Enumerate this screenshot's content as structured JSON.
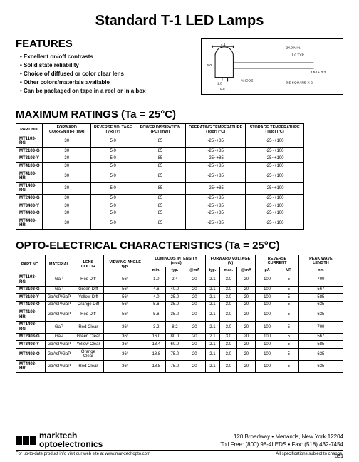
{
  "title": "Standard T-1 LED Lamps",
  "features": {
    "heading": "FEATURES",
    "items": [
      "Excellent on/off contrasts",
      "Solid state reliability",
      "Choice of diffused or color clear lens",
      "Other colors/materials available",
      "Can be packaged on tape in a reel or in a box"
    ]
  },
  "diagram": {
    "labels": [
      "4.1",
      "5.0",
      "1.0",
      "24.0 MIN.",
      "1.0 TYP.",
      "2.54 ± 0.2",
      "0.5 SQUARE X 2",
      "ANODE",
      "0.5"
    ]
  },
  "max": {
    "heading": "MAXIMUM RATINGS (Ta = 25°C)",
    "columns": [
      "PART NO.",
      "FORWARD CURRENT(IF) (mA)",
      "REVERSE VOLTAGE (VR) (V)",
      "POWER DISSIPATION (PD) (mW)",
      "OPERATING TEMPERATURE (Topr) (°C)",
      "STORAGE TEMPERATURE (Tstg) (°C)"
    ],
    "rows": [
      [
        "MT1103-RG",
        "30",
        "5.0",
        "85",
        "-25~+85",
        "-25~+100"
      ],
      [
        "MT2103-G",
        "30",
        "5.0",
        "85",
        "-25~+85",
        "-25~+100"
      ],
      [
        "MT3103-Y",
        "30",
        "5.0",
        "85",
        "-25~+85",
        "-25~+100"
      ],
      [
        "MT4103-O",
        "30",
        "5.0",
        "85",
        "-25~+85",
        "-25~+100"
      ],
      [
        "MT4103-HR",
        "30",
        "5.0",
        "85",
        "-25~+85",
        "-25~+100"
      ],
      [
        "MT1403-RG",
        "30",
        "5.0",
        "85",
        "-25~+85",
        "-25~+100"
      ],
      [
        "MT2403-G",
        "30",
        "5.0",
        "85",
        "-25~+85",
        "-25~+100"
      ],
      [
        "MT3403-Y",
        "30",
        "5.0",
        "85",
        "-25~+85",
        "-25~+100"
      ],
      [
        "MT4403-O",
        "30",
        "5.0",
        "85",
        "-25~+85",
        "-25~+100"
      ],
      [
        "MT4403-HR",
        "30",
        "5.0",
        "85",
        "-25~+85",
        "-25~+100"
      ]
    ]
  },
  "opto": {
    "heading": "OPTO-ELECTRICAL CHARACTERISTICS (Ta = 25°C)",
    "top_columns": [
      "PART NO.",
      "MATERIAL",
      "LENS COLOR",
      "VIEWING ANGLE typ.",
      "LUMINOUS INTENSITY (mcd)",
      "FORWARD VOLTAGE (V)",
      "REVERSE CURRENT",
      "PEAK WAVE LENGTH"
    ],
    "sub_columns": [
      "min.",
      "typ.",
      "@mA",
      "typ.",
      "max.",
      "@mA",
      "µA",
      "VR",
      "nm"
    ],
    "rows": [
      [
        "MT1103-RG",
        "GaP",
        "Red Diff",
        "56°",
        "1.0",
        "2.4",
        "20",
        "2.1",
        "3.0",
        "20",
        "100",
        "5",
        "700"
      ],
      [
        "MT2103-G",
        "GaP",
        "Green Diff",
        "56°",
        "4.6",
        "40.0",
        "20",
        "2.1",
        "3.0",
        "20",
        "100",
        "5",
        "567"
      ],
      [
        "MT3103-Y",
        "GaAsP/GaP",
        "Yellow Diff",
        "56°",
        "4.0",
        "25.0",
        "20",
        "2.1",
        "3.0",
        "20",
        "100",
        "5",
        "585"
      ],
      [
        "MT4103-O",
        "GaAsP/GaP",
        "Orange Diff",
        "56°",
        "5.6",
        "35.0",
        "20",
        "2.1",
        "3.0",
        "20",
        "100",
        "5",
        "635"
      ],
      [
        "MT4103-HR",
        "GaAsP/GaP",
        "Red Diff",
        "56°",
        "5.6",
        "35.0",
        "20",
        "2.1",
        "3.0",
        "20",
        "100",
        "5",
        "635"
      ],
      [
        "MT1403-RG",
        "GaP",
        "Red Clear",
        "36°",
        "3.2",
        "8.2",
        "20",
        "2.1",
        "3.0",
        "20",
        "100",
        "5",
        "700"
      ],
      [
        "MT2403-G",
        "GaP",
        "Green Clear",
        "36°",
        "16.0",
        "80.0",
        "20",
        "2.1",
        "3.0",
        "20",
        "100",
        "5",
        "567"
      ],
      [
        "MT3403-Y",
        "GaAsP/GaP",
        "Yellow Clear",
        "36°",
        "13.4",
        "60.0",
        "20",
        "2.1",
        "3.0",
        "20",
        "100",
        "5",
        "585"
      ],
      [
        "MT4403-O",
        "GaAsP/GaP",
        "Orange Clear",
        "36°",
        "18.8",
        "75.0",
        "20",
        "2.1",
        "3.0",
        "20",
        "100",
        "5",
        "635"
      ],
      [
        "MT4403-HR",
        "GaAsP/GaP",
        "Red Clear",
        "36°",
        "18.8",
        "75.0",
        "20",
        "2.1",
        "3.0",
        "20",
        "100",
        "5",
        "635"
      ]
    ]
  },
  "footer": {
    "company1": "marktech",
    "company2": "optoelectronics",
    "addr": "120 Broadway • Menands, New York 12204",
    "phone": "Toll Free: (800) 98-4LEDS • Fax: (518) 432-7454",
    "web": "For up-to-date product info visit our web site at www.marktechopto.com",
    "disclaimer": "All specifications subject to change.",
    "page": "351"
  }
}
